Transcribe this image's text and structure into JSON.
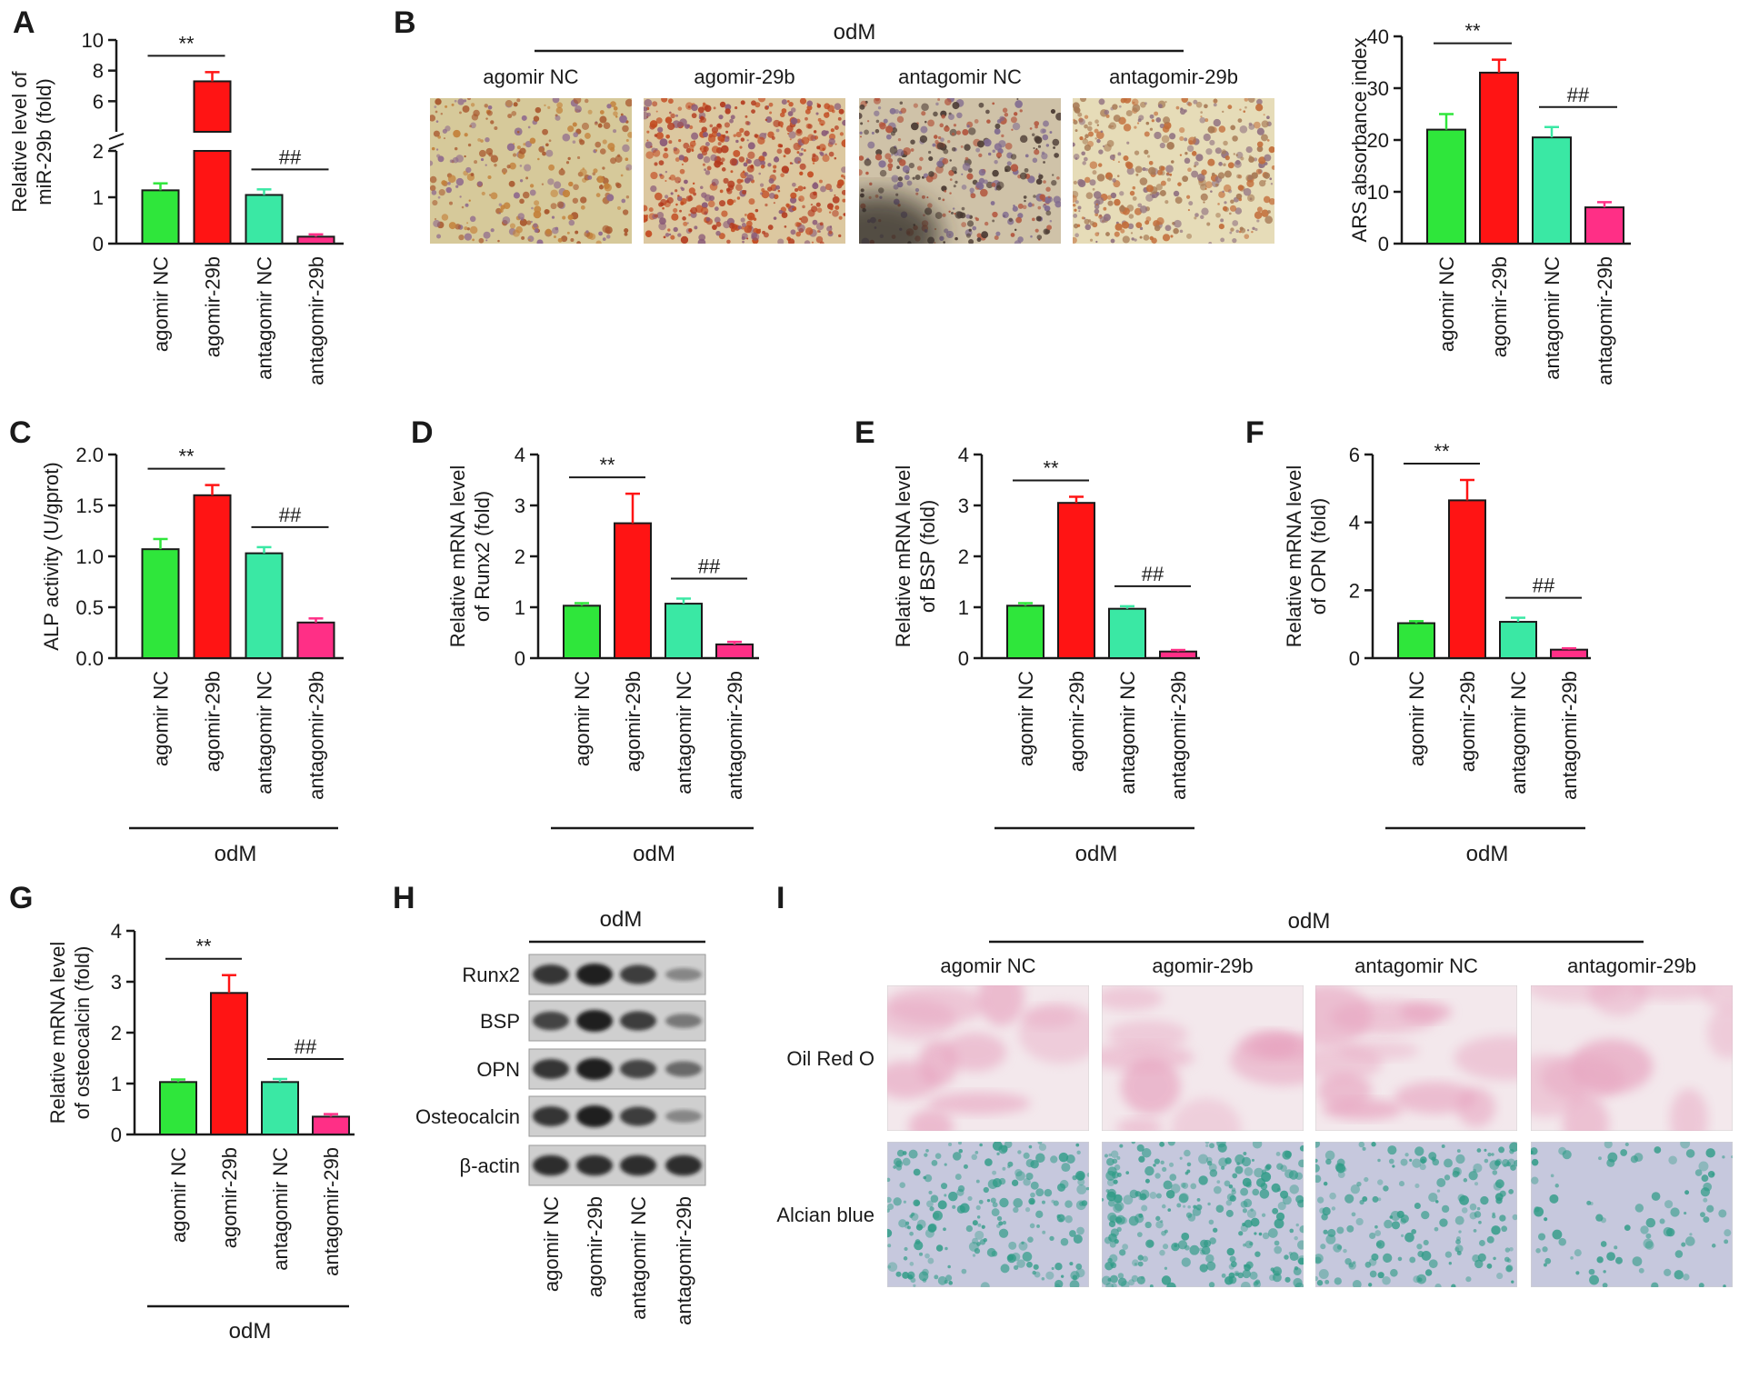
{
  "colors": {
    "agomir_nc": "#2fe63b",
    "agomir_29b": "#ff1414",
    "antagomir_nc": "#3ae8a4",
    "antagomir_29b": "#ff2f86",
    "axis": "#1a1a1a"
  },
  "groups": [
    "agomir NC",
    "agomir-29b",
    "antagomir NC",
    "antagomir-29b"
  ],
  "panel_letters": {
    "A": "A",
    "B": "B",
    "C": "C",
    "D": "D",
    "E": "E",
    "F": "F",
    "G": "G",
    "H": "H",
    "I": "I"
  },
  "treatment_label": "odM",
  "chart_data": [
    {
      "id": "A",
      "type": "bar",
      "categories": [
        "agomir NC",
        "agomir-29b",
        "antagomir NC",
        "antagomir-29b"
      ],
      "values": [
        1.15,
        7.3,
        1.05,
        0.15
      ],
      "errors": [
        0.15,
        0.6,
        0.12,
        0.05
      ],
      "ylabel_lines": [
        "Relative level of",
        "miR-29b (fold)"
      ],
      "axis_break": {
        "lower": [
          0,
          2
        ],
        "upper": [
          4,
          10
        ]
      },
      "yticks": [
        0,
        1,
        2,
        6,
        8,
        10
      ],
      "sig": [
        {
          "pair": [
            0,
            1
          ],
          "label": "**"
        },
        {
          "pair": [
            2,
            3
          ],
          "label": "##"
        }
      ]
    },
    {
      "id": "B",
      "type": "bar",
      "categories": [
        "agomir NC",
        "agomir-29b",
        "antagomir NC",
        "antagomir-29b"
      ],
      "values": [
        22,
        33,
        20.5,
        7
      ],
      "errors": [
        3,
        2.5,
        2,
        1
      ],
      "ylabel_lines": [
        "ARS absorbance index"
      ],
      "ylim": [
        0,
        40
      ],
      "yticks": [
        0,
        10,
        20,
        30,
        40
      ],
      "sig": [
        {
          "pair": [
            0,
            1
          ],
          "label": "**"
        },
        {
          "pair": [
            2,
            3
          ],
          "label": "##"
        }
      ]
    },
    {
      "id": "C",
      "type": "bar",
      "categories": [
        "agomir NC",
        "agomir-29b",
        "antagomir NC",
        "antagomir-29b"
      ],
      "values": [
        1.07,
        1.6,
        1.03,
        0.35
      ],
      "errors": [
        0.1,
        0.1,
        0.06,
        0.04
      ],
      "ylabel_lines": [
        "ALP activity (U/gprot)"
      ],
      "ylim": [
        0,
        2.0
      ],
      "yticks": [
        0.0,
        0.5,
        1.0,
        1.5,
        2.0
      ],
      "ytick_labels": [
        "0.0",
        "0.5",
        "1.0",
        "1.5",
        "2.0"
      ],
      "sig": [
        {
          "pair": [
            0,
            1
          ],
          "label": "**"
        },
        {
          "pair": [
            2,
            3
          ],
          "label": "##"
        }
      ]
    },
    {
      "id": "D",
      "type": "bar",
      "categories": [
        "agomir NC",
        "agomir-29b",
        "antagomir NC",
        "antagomir-29b"
      ],
      "values": [
        1.03,
        2.65,
        1.07,
        0.27
      ],
      "errors": [
        0.05,
        0.58,
        0.1,
        0.05
      ],
      "ylabel_lines": [
        "Relative mRNA level",
        "of Runx2 (fold)"
      ],
      "ylim": [
        0,
        4
      ],
      "yticks": [
        0,
        1,
        2,
        3,
        4
      ],
      "sig": [
        {
          "pair": [
            0,
            1
          ],
          "label": "**"
        },
        {
          "pair": [
            2,
            3
          ],
          "label": "##"
        }
      ]
    },
    {
      "id": "E",
      "type": "bar",
      "categories": [
        "agomir NC",
        "agomir-29b",
        "antagomir NC",
        "antagomir-29b"
      ],
      "values": [
        1.03,
        3.05,
        0.97,
        0.13
      ],
      "errors": [
        0.05,
        0.12,
        0.05,
        0.03
      ],
      "ylabel_lines": [
        "Relative mRNA level",
        "of BSP (fold)"
      ],
      "ylim": [
        0,
        4
      ],
      "yticks": [
        0,
        1,
        2,
        3,
        4
      ],
      "sig": [
        {
          "pair": [
            0,
            1
          ],
          "label": "**"
        },
        {
          "pair": [
            2,
            3
          ],
          "label": "##"
        }
      ]
    },
    {
      "id": "F",
      "type": "bar",
      "categories": [
        "agomir NC",
        "agomir-29b",
        "antagomir NC",
        "antagomir-29b"
      ],
      "values": [
        1.03,
        4.65,
        1.07,
        0.25
      ],
      "errors": [
        0.06,
        0.6,
        0.12,
        0.04
      ],
      "ylabel_lines": [
        "Relative mRNA level",
        "of OPN (fold)"
      ],
      "ylim": [
        0,
        6
      ],
      "yticks": [
        0,
        2,
        4,
        6
      ],
      "sig": [
        {
          "pair": [
            0,
            1
          ],
          "label": "**"
        },
        {
          "pair": [
            2,
            3
          ],
          "label": "##"
        }
      ]
    },
    {
      "id": "G",
      "type": "bar",
      "categories": [
        "agomir NC",
        "agomir-29b",
        "antagomir NC",
        "antagomir-29b"
      ],
      "values": [
        1.03,
        2.78,
        1.03,
        0.35
      ],
      "errors": [
        0.05,
        0.35,
        0.06,
        0.05
      ],
      "ylabel_lines": [
        "Relative mRNA level",
        "of osteocalcin (fold)"
      ],
      "ylim": [
        0,
        4
      ],
      "yticks": [
        0,
        1,
        2,
        3,
        4
      ],
      "sig": [
        {
          "pair": [
            0,
            1
          ],
          "label": "**"
        },
        {
          "pair": [
            2,
            3
          ],
          "label": "##"
        }
      ]
    }
  ],
  "panel_b": {
    "images": [
      {
        "label": "agomir NC",
        "bg": "#d6c99a",
        "spots": [
          "#a8572e",
          "#8f6a8d",
          "#c3813b"
        ]
      },
      {
        "label": "agomir-29b",
        "bg": "#dcc8a0",
        "spots": [
          "#b33b1f",
          "#c24a20",
          "#8a5a78"
        ]
      },
      {
        "label": "antagomir NC",
        "bg": "#cfc2a8",
        "spots": [
          "#b2553d",
          "#7f6a8f",
          "#4a3a33"
        ]
      },
      {
        "label": "antagomir-29b",
        "bg": "#e6dcb8",
        "spots": [
          "#c26d3a",
          "#a77a55",
          "#8f6f7f"
        ]
      }
    ]
  },
  "western": {
    "bands": [
      "Runx2",
      "BSP",
      "OPN",
      "Osteocalcin",
      "β-actin"
    ],
    "intensity": [
      [
        0.85,
        1.0,
        0.8,
        0.3
      ],
      [
        0.75,
        1.0,
        0.8,
        0.4
      ],
      [
        0.85,
        1.0,
        0.75,
        0.5
      ],
      [
        0.85,
        1.0,
        0.8,
        0.3
      ],
      [
        0.9,
        0.9,
        0.9,
        0.9
      ]
    ]
  },
  "panel_i": {
    "rows": [
      {
        "label": "Oil Red O",
        "bg": "#f3e8ec",
        "stain": "#e7a3bf"
      },
      {
        "label": "Alcian blue",
        "bg": "#c6c8dd",
        "stain": "#2e9b86"
      }
    ],
    "cols": [
      "agomir NC",
      "agomir-29b",
      "antagomir NC",
      "antagomir-29b"
    ],
    "alcian_density": [
      0.7,
      0.9,
      0.6,
      0.2
    ]
  }
}
